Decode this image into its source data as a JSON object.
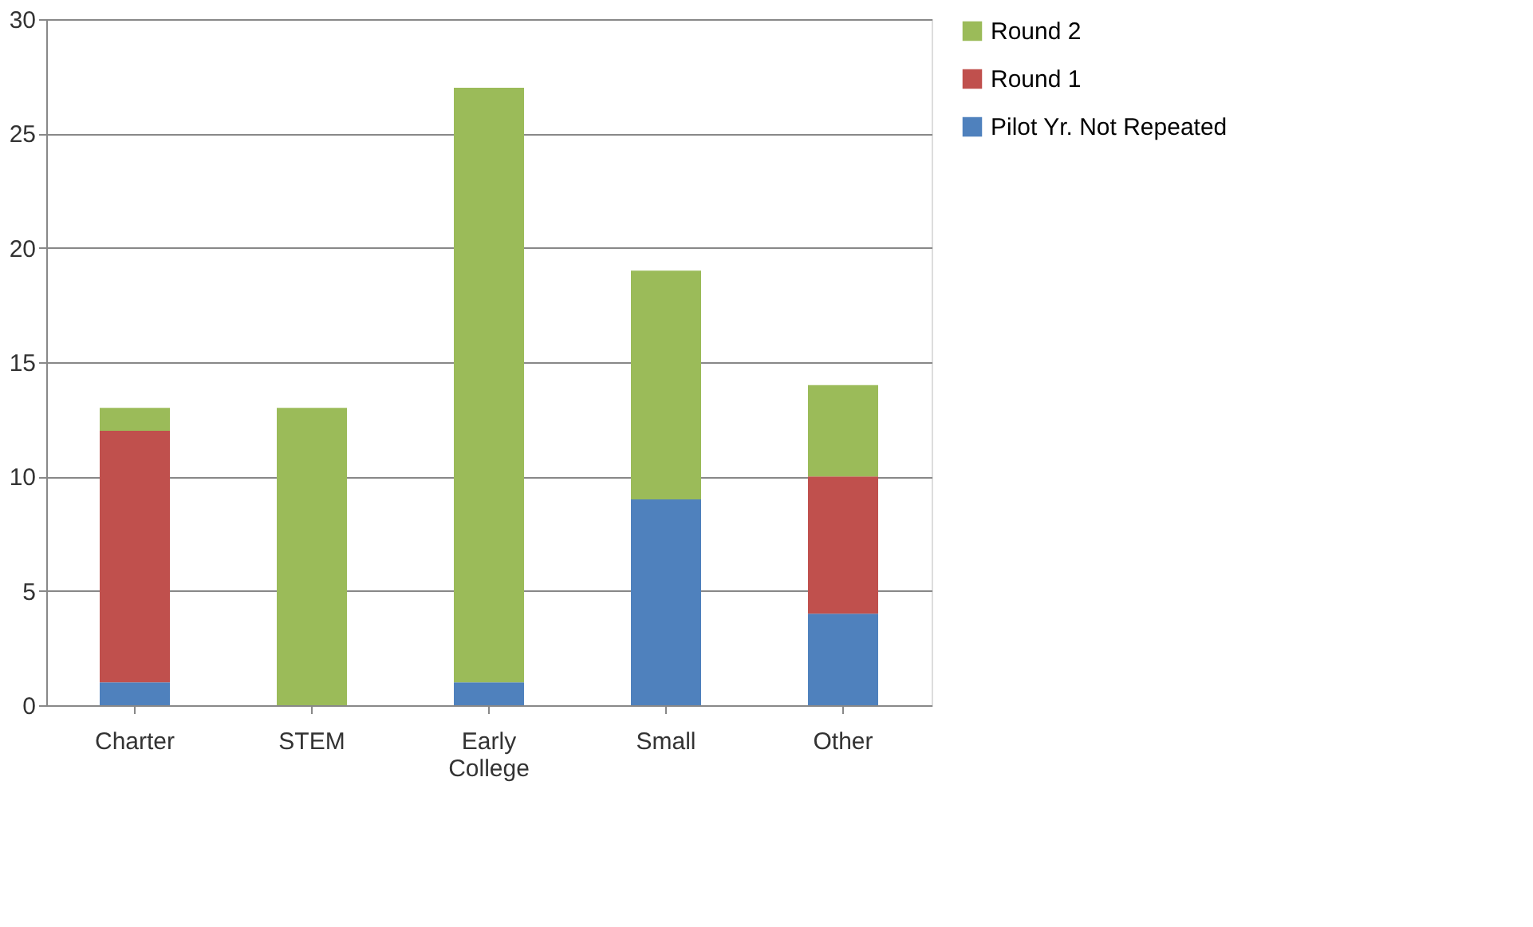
{
  "chart_data": {
    "type": "bar",
    "stacked": true,
    "categories": [
      "Charter",
      "STEM",
      "Early College",
      "Small",
      "Other"
    ],
    "series": [
      {
        "name": "Pilot Yr. Not Repeated",
        "color": "#4f81bd",
        "values": [
          1,
          0,
          1,
          9,
          4
        ]
      },
      {
        "name": "Round 1",
        "color": "#c0504d",
        "values": [
          11,
          0,
          0,
          0,
          6
        ]
      },
      {
        "name": "Round 2",
        "color": "#9bbb59",
        "values": [
          1,
          13,
          26,
          10,
          4
        ]
      }
    ],
    "ylim": [
      0,
      30
    ],
    "yticks": [
      0,
      5,
      10,
      15,
      20,
      25,
      30
    ],
    "grid": "y",
    "legend": "right"
  }
}
